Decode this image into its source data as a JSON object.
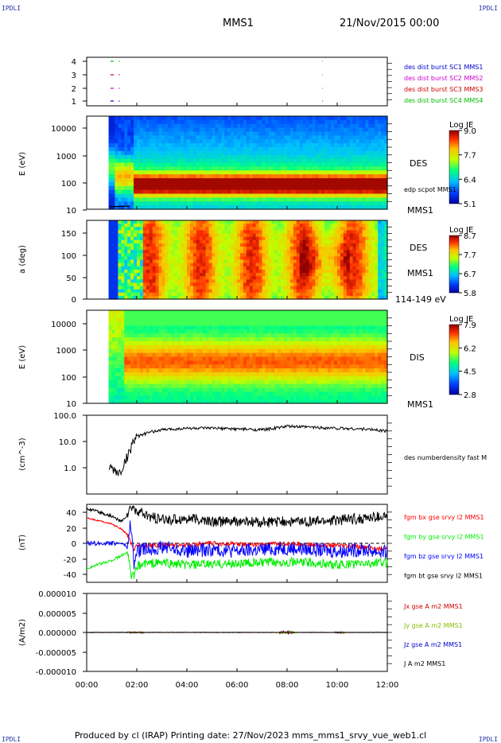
{
  "corner_label": "IPDLI",
  "header": {
    "spacecraft": "MMS1",
    "datetime": "21/Nov/2015 00:00"
  },
  "footer": "Produced by cl (IRAP)   Printing date: 27/Nov/2023   mms_mms1_srvy_vue_web1.cl",
  "colors": {
    "sc1": "#0000cc",
    "sc2": "#cc00cc",
    "sc3": "#cc0000",
    "sc4": "#00bb00",
    "bx": "#ff0000",
    "by": "#00ee00",
    "bz": "#0000ff",
    "bt": "#000000",
    "jx": "#cc0000",
    "jy": "#88bb00",
    "jz": "#0000cc"
  },
  "chart_data": [
    {
      "type": "scatter",
      "panel": "burst",
      "yticks": [
        "4",
        "3",
        "2",
        "1"
      ],
      "legend": [
        "des dist burst SC1 MMS1",
        "des dist burst SC2 MMS2",
        "des dist burst SC3 MMS3",
        "des dist burst SC4 MMS4"
      ],
      "segments_hours": [
        [
          0.95,
          1.08
        ],
        [
          1.28,
          1.32
        ],
        [
          9.4,
          9.42
        ]
      ]
    },
    {
      "type": "heatmap",
      "panel": "des-energy",
      "ylabel": "E (eV)",
      "yscale": "log",
      "yticks": [
        "10000",
        "1000",
        "100",
        "10"
      ],
      "species": "DES",
      "spacecraft": "MMS1",
      "overlay": "edp scpot MMS1",
      "colorbar": {
        "title": "Log JE",
        "ticks": [
          "9.0",
          "7.7",
          "6.4",
          "5.1"
        ],
        "range": [
          5.1,
          9.0
        ]
      },
      "data_start_hours": 0.85
    },
    {
      "type": "heatmap",
      "panel": "des-pitch",
      "ylabel": "a (deg)",
      "yticks": [
        "150",
        "100",
        "50",
        "0"
      ],
      "ylim": [
        0,
        180
      ],
      "species": "DES",
      "spacecraft": "MMS1",
      "energy_range": "114-149 eV",
      "colorbar": {
        "title": "Log JE",
        "ticks": [
          "8.7",
          "7.7",
          "6.7",
          "5.8"
        ],
        "range": [
          5.8,
          8.7
        ]
      },
      "data_start_hours": 0.85
    },
    {
      "type": "heatmap",
      "panel": "dis-energy",
      "ylabel": "E (eV)",
      "yscale": "log",
      "yticks": [
        "10000",
        "1000",
        "100",
        "10"
      ],
      "species": "DIS",
      "spacecraft": "MMS1",
      "colorbar": {
        "title": "Log JE",
        "ticks": [
          "7.9",
          "6.2",
          "4.5",
          "2.8"
        ],
        "range": [
          2.8,
          7.9
        ]
      },
      "data_start_hours": 0.85
    },
    {
      "type": "line",
      "panel": "density",
      "ylabel": "(cm^-3)",
      "yscale": "log",
      "yticks": [
        "100.0",
        "10.0",
        "1.0"
      ],
      "ylim": [
        0.1,
        100
      ],
      "series": [
        {
          "name": "des numberdensity fast M",
          "x_hours": [
            0.9,
            1.1,
            1.3,
            1.4,
            1.5,
            1.6,
            1.7,
            1.8,
            1.9,
            2.0,
            2.2,
            2.5,
            3.0,
            3.5,
            4.0,
            5.0,
            6.0,
            7.0,
            7.5,
            8.0,
            9.0,
            10.0,
            11.0,
            11.5,
            12.0
          ],
          "values": [
            1.0,
            0.8,
            0.6,
            0.9,
            1.5,
            2.5,
            4.0,
            8.0,
            12.0,
            15.0,
            18.0,
            22.0,
            28.0,
            30.0,
            32.0,
            32.0,
            30.0,
            28.0,
            32.0,
            38.0,
            35.0,
            32.0,
            30.0,
            28.0,
            25.0
          ]
        }
      ]
    },
    {
      "type": "line",
      "panel": "magnetic-field",
      "ylabel": "(nT)",
      "yticks": [
        "40",
        "20",
        "0",
        "-20",
        "-40"
      ],
      "ylim": [
        -48,
        48
      ],
      "x_hours": [
        0.0,
        0.5,
        1.0,
        1.4,
        1.65,
        1.75,
        1.9,
        2.0,
        2.3,
        3.0,
        4.0,
        5.0,
        6.0,
        7.0,
        8.0,
        9.0,
        10.0,
        11.0,
        12.0
      ],
      "series": [
        {
          "name": "fgm bx gse srvy l2 MMS1",
          "values": [
            33,
            29,
            25,
            18,
            10,
            2,
            -8,
            -2,
            -3,
            -2,
            -2,
            0,
            -1,
            -2,
            0,
            -2,
            -3,
            -5,
            -8
          ]
        },
        {
          "name": "fgm by gse srvy l2 MMS1",
          "values": [
            -32,
            -27,
            -22,
            -16,
            -10,
            -40,
            -44,
            -30,
            -26,
            -25,
            -28,
            -27,
            -26,
            -25,
            -24,
            -25,
            -28,
            -26,
            -25
          ]
        },
        {
          "name": "fgm bz gse srvy l2 MMS1",
          "values": [
            0,
            0,
            0,
            0,
            -5,
            30,
            -30,
            -10,
            -8,
            -5,
            -10,
            -8,
            -10,
            -8,
            -6,
            -8,
            -10,
            -8,
            -12
          ]
        },
        {
          "name": "fgm bt gse srvy l2 MMS1",
          "values": [
            45,
            40,
            35,
            28,
            38,
            46,
            46,
            42,
            36,
            30,
            32,
            28,
            28,
            27,
            28,
            28,
            30,
            32,
            35
          ]
        }
      ]
    },
    {
      "type": "line",
      "panel": "current-density",
      "ylabel": "(A/m2)",
      "yticks": [
        "0.000010",
        "0.000005",
        "0.000000",
        "-0.000005",
        "-0.000010"
      ],
      "ylim": [
        -1e-05,
        1e-05
      ],
      "series": [
        {
          "name": "Jx gse A m2 MMS1"
        },
        {
          "name": "Jy gse A m2 MMS1"
        },
        {
          "name": "Jz gse A m2 MMS1"
        },
        {
          "name": "J A m2 MMS1"
        }
      ]
    }
  ],
  "xaxis": {
    "ticks": [
      "00:00",
      "02:00",
      "04:00",
      "06:00",
      "08:00",
      "10:00",
      "12:00"
    ],
    "range_hours": [
      0,
      12
    ]
  }
}
